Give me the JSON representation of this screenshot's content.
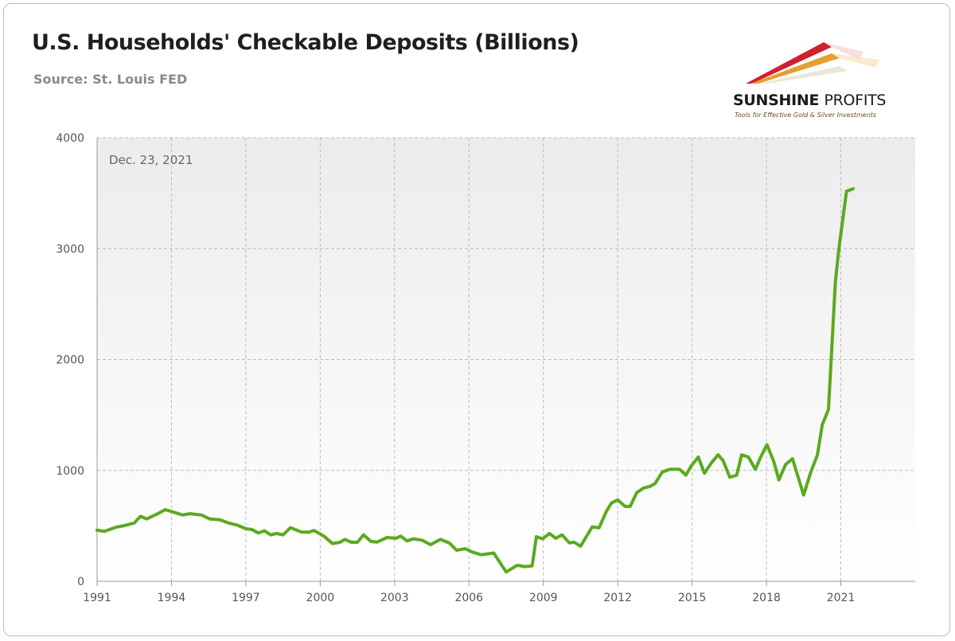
{
  "chart_data": {
    "type": "line",
    "title": "U.S. Households' Checkable Deposits (Billions)",
    "subtitle": "Source: St. Louis FED",
    "annotation": "Dec. 23, 2021",
    "xlabel": "",
    "ylabel": "",
    "xlim": [
      1991,
      2024
    ],
    "ylim": [
      0,
      4000
    ],
    "x_ticks": [
      "1991",
      "1994",
      "1997",
      "2000",
      "2003",
      "2006",
      "2009",
      "2012",
      "2015",
      "2018",
      "2021"
    ],
    "y_ticks": [
      "0",
      "1000",
      "2000",
      "3000",
      "4000"
    ],
    "grid": true,
    "legend": "none",
    "line_color": "#5aaa1e",
    "series": [
      {
        "x": [
          1991.0,
          1991.3,
          1991.8,
          1992.1,
          1992.5,
          1992.75,
          1993.0,
          1993.45,
          1993.75,
          1994.1,
          1994.45,
          1994.75,
          1995.2,
          1995.55,
          1995.95,
          1996.3,
          1996.65,
          1997.0,
          1997.25,
          1997.5,
          1997.75,
          1998.0,
          1998.25,
          1998.5,
          1998.8,
          1999.25,
          1999.55,
          1999.75,
          2000.15,
          2000.5,
          2000.8,
          2001.0,
          2001.25,
          2001.5,
          2001.75,
          2002.05,
          2002.3,
          2002.7,
          2003.05,
          2003.25,
          2003.5,
          2003.75,
          2004.1,
          2004.45,
          2004.85,
          2005.2,
          2005.5,
          2005.85,
          2006.15,
          2006.5,
          2007.0,
          2007.5,
          2007.95,
          2008.25,
          2008.55,
          2008.72,
          2008.97,
          2009.25,
          2009.5,
          2009.75,
          2010.05,
          2010.25,
          2010.5,
          2010.97,
          2011.25,
          2011.55,
          2011.75,
          2012.0,
          2012.3,
          2012.5,
          2012.77,
          2013.05,
          2013.3,
          2013.5,
          2013.8,
          2014.1,
          2014.5,
          2014.75,
          2014.97,
          2015.25,
          2015.5,
          2015.77,
          2016.05,
          2016.25,
          2016.52,
          2016.8,
          2017.0,
          2017.27,
          2017.55,
          2017.75,
          2018.02,
          2018.3,
          2018.5,
          2018.77,
          2019.05,
          2019.5,
          2019.8,
          2020.05,
          2020.25,
          2020.5,
          2020.78,
          2020.92,
          2021.23,
          2021.5
        ],
        "y": [
          460,
          450,
          490,
          502,
          526,
          586,
          562,
          610,
          646,
          622,
          598,
          610,
          598,
          562,
          555,
          526,
          507,
          474,
          467,
          435,
          455,
          419,
          431,
          419,
          483,
          443,
          443,
          459,
          407,
          340,
          352,
          378,
          352,
          352,
          419,
          359,
          354,
          395,
          388,
          407,
          364,
          383,
          371,
          330,
          378,
          347,
          280,
          294,
          263,
          239,
          255,
          84,
          144,
          132,
          139,
          402,
          383,
          431,
          388,
          419,
          347,
          352,
          316,
          490,
          483,
          634,
          706,
          734,
          675,
          675,
          801,
          842,
          856,
          880,
          986,
          1010,
          1010,
          957,
          1041,
          1120,
          974,
          1065,
          1141,
          1089,
          938,
          957,
          1141,
          1120,
          1010,
          1112,
          1232,
          1077,
          914,
          1053,
          1105,
          778,
          993,
          1136,
          1411,
          1550,
          2700,
          3000,
          3518,
          3540
        ]
      }
    ]
  },
  "logo": {
    "name": "SUNSHINE",
    "name2": "PROFITS",
    "tagline": "Tools for Effective Gold & Silver Investments"
  }
}
